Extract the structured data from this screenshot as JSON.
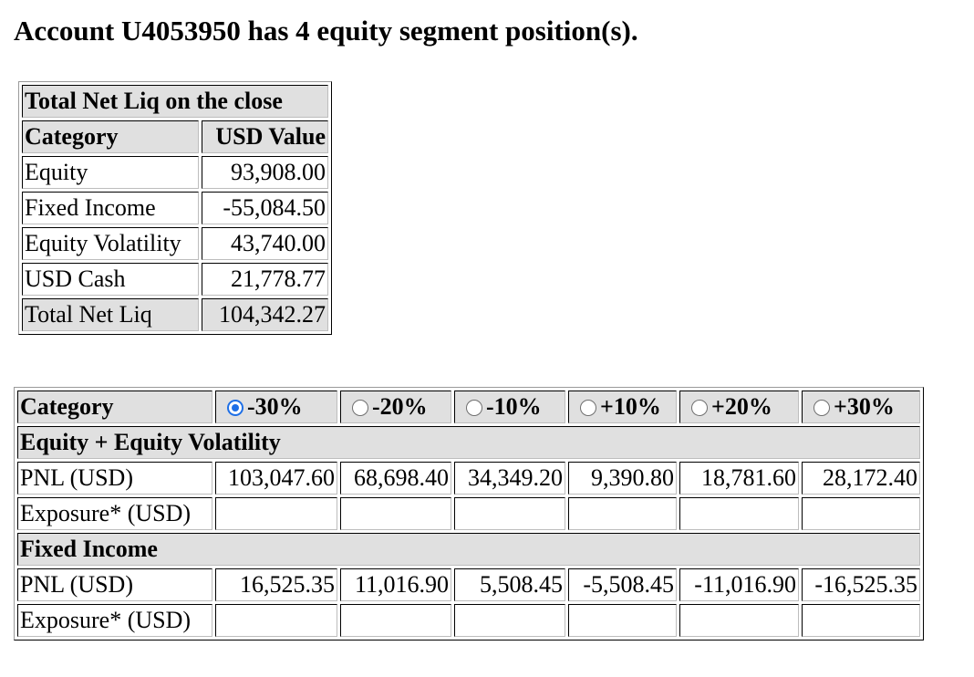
{
  "header": {
    "title": "Account U4053950 has 4 equity segment position(s)."
  },
  "net_liq_table": {
    "caption": "Total Net Liq on the close",
    "col_category": "Category",
    "col_value": "USD Value",
    "rows": [
      {
        "category": "Equity",
        "value": "93,908.00"
      },
      {
        "category": "Fixed Income",
        "value": "-55,084.50"
      },
      {
        "category": "Equity Volatility",
        "value": "43,740.00"
      },
      {
        "category": "USD Cash",
        "value": "21,778.77"
      }
    ],
    "total": {
      "category": "Total Net Liq",
      "value": "104,342.27"
    }
  },
  "scenario_table": {
    "col_category": "Category",
    "scenarios": [
      {
        "label": "-30%",
        "selected": true
      },
      {
        "label": "-20%",
        "selected": false
      },
      {
        "label": "-10%",
        "selected": false
      },
      {
        "label": "+10%",
        "selected": false
      },
      {
        "label": "+20%",
        "selected": false
      },
      {
        "label": "+30%",
        "selected": false
      }
    ],
    "sections": [
      {
        "title": "Equity + Equity Volatility",
        "pnl_label": "PNL (USD)",
        "pnl_values": [
          "103,047.60",
          "68,698.40",
          "34,349.20",
          "9,390.80",
          "18,781.60",
          "28,172.40"
        ],
        "exposure_label": "Exposure* (USD)"
      },
      {
        "title": "Fixed Income",
        "pnl_label": "PNL (USD)",
        "pnl_values": [
          "16,525.35",
          "11,016.90",
          "5,508.45",
          "-5,508.45",
          "-11,016.90",
          "-16,525.35"
        ],
        "exposure_label": "Exposure* (USD)"
      }
    ]
  },
  "colors": {
    "radio_selected": "#1e6fe6",
    "header_cell_bg": "#e0e0e0"
  }
}
